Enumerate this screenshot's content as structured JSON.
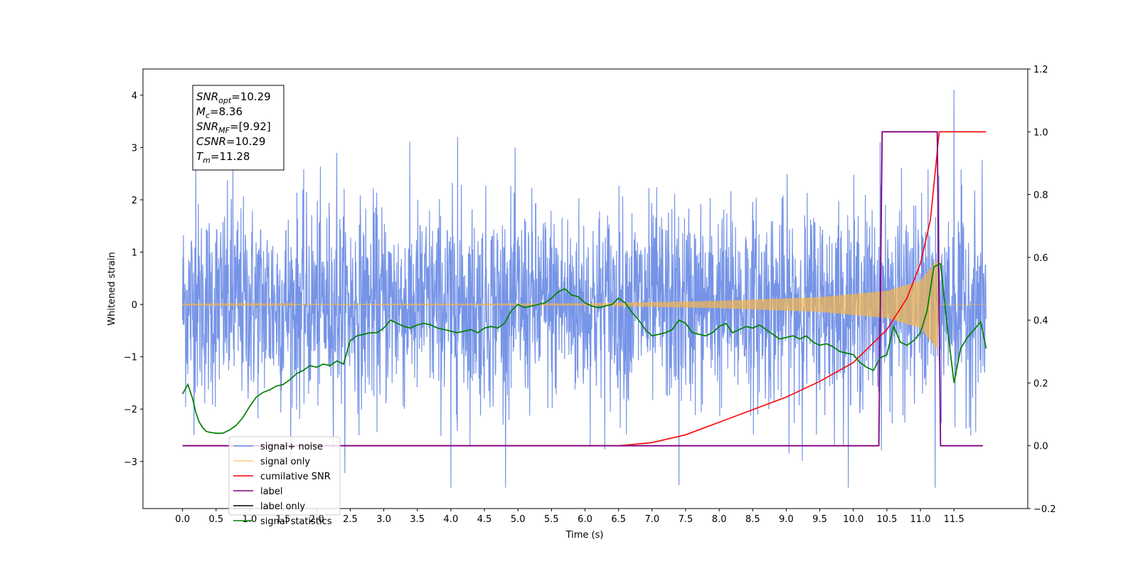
{
  "chart_data": {
    "type": "line",
    "xlabel": "Time (s)",
    "ylabel": "Whitened strain",
    "x_ticks": [
      "0.0",
      "0.5",
      "1.0",
      "1.5",
      "2.0",
      "2.5",
      "3.0",
      "3.5",
      "4.0",
      "4.5",
      "5.0",
      "5.5",
      "6.0",
      "6.5",
      "7.0",
      "7.5",
      "8.0",
      "8.5",
      "9.0",
      "9.5",
      "10.0",
      "10.5",
      "11.0",
      "11.5"
    ],
    "xlim": [
      -0.59,
      12.6
    ],
    "ylim_left": [
      -3.9,
      4.5
    ],
    "left_ticks": [
      "−3",
      "−2",
      "−1",
      "0",
      "1",
      "2",
      "3",
      "4"
    ],
    "ylim_right": [
      -0.2,
      1.2
    ],
    "right_ticks": [
      "−0.2",
      "0.0",
      "0.2",
      "0.4",
      "0.6",
      "0.8",
      "1.0",
      "1.2"
    ],
    "grid": false,
    "legend_position": "lower-left",
    "annotation": {
      "lines": [
        {
          "main": "SNR",
          "sub": "opt",
          "value": "=10.29"
        },
        {
          "main": "M",
          "sub": "c",
          "value": "=8.36"
        },
        {
          "main": "SNR",
          "sub": "MF",
          "value": "=[9.92]"
        },
        {
          "main": "CSNR",
          "sub": "",
          "value": "=10.29"
        },
        {
          "main": "T",
          "sub": "m",
          "value": "=11.28"
        }
      ]
    },
    "series": [
      {
        "name": "signal+ noise",
        "color": "#6f8ee6",
        "axis": "left",
        "x_range": [
          0.0,
          11.98
        ],
        "envelope_min": -3.5,
        "envelope_max": 4.1,
        "spikes": [
          {
            "x": 0.2,
            "y": 2.9
          },
          {
            "x": 0.75,
            "y": 2.8
          },
          {
            "x": 2.3,
            "y": 2.9
          },
          {
            "x": 4.0,
            "y": -3.5
          },
          {
            "x": 4.1,
            "y": 3.2
          },
          {
            "x": 7.4,
            "y": -3.45
          },
          {
            "x": 10.4,
            "y": 3.1
          },
          {
            "x": 11.22,
            "y": -3.5
          },
          {
            "x": 11.5,
            "y": 4.1
          }
        ]
      },
      {
        "name": "signal only",
        "color": "#f5b64c",
        "axis": "left",
        "chirp_envelope": {
          "x": [
            0.0,
            6.0,
            8.0,
            9.5,
            10.5,
            11.0,
            11.25,
            11.28,
            11.98
          ],
          "amp": [
            0.005,
            0.02,
            0.07,
            0.14,
            0.26,
            0.45,
            0.85,
            0.0,
            0.0
          ]
        }
      },
      {
        "name": "cumilative SNR",
        "color": "#ff0000",
        "axis": "right",
        "x": [
          0.0,
          5.0,
          6.5,
          7.0,
          7.5,
          8.0,
          8.5,
          9.0,
          9.5,
          10.0,
          10.5,
          10.8,
          11.0,
          11.15,
          11.28,
          11.98
        ],
        "y": [
          0.0,
          0.0,
          0.0,
          0.01,
          0.035,
          0.075,
          0.115,
          0.155,
          0.205,
          0.265,
          0.37,
          0.47,
          0.58,
          0.72,
          1.0,
          1.0
        ]
      },
      {
        "name": "label",
        "color": "#800080",
        "axis": "right",
        "x": [
          0.0,
          10.38,
          10.43,
          11.25,
          11.3,
          11.93
        ],
        "y": [
          0.0,
          0.0,
          1.0,
          1.0,
          0.0,
          0.0
        ]
      },
      {
        "name": "label only",
        "color": "#000000",
        "axis": "right",
        "legend_only": true
      },
      {
        "name": "signal statistics",
        "color": "#008000",
        "axis": "right",
        "x": [
          0.0,
          0.08,
          0.15,
          0.2,
          0.25,
          0.3,
          0.35,
          0.4,
          0.5,
          0.6,
          0.65,
          0.7,
          0.8,
          0.9,
          1.0,
          1.1,
          1.2,
          1.3,
          1.4,
          1.5,
          1.6,
          1.7,
          1.8,
          1.9,
          2.0,
          2.1,
          2.2,
          2.3,
          2.4,
          2.5,
          2.6,
          2.7,
          2.8,
          2.9,
          3.0,
          3.1,
          3.2,
          3.3,
          3.4,
          3.5,
          3.6,
          3.7,
          3.8,
          3.9,
          4.0,
          4.1,
          4.2,
          4.3,
          4.4,
          4.5,
          4.6,
          4.7,
          4.8,
          4.9,
          5.0,
          5.1,
          5.2,
          5.3,
          5.4,
          5.5,
          5.6,
          5.7,
          5.8,
          5.9,
          6.0,
          6.1,
          6.2,
          6.3,
          6.4,
          6.5,
          6.6,
          6.7,
          6.8,
          6.9,
          7.0,
          7.1,
          7.2,
          7.3,
          7.4,
          7.5,
          7.6,
          7.7,
          7.8,
          7.9,
          8.0,
          8.1,
          8.2,
          8.3,
          8.4,
          8.5,
          8.6,
          8.7,
          8.8,
          8.9,
          9.0,
          9.1,
          9.2,
          9.3,
          9.4,
          9.5,
          9.6,
          9.7,
          9.8,
          9.9,
          10.0,
          10.1,
          10.2,
          10.3,
          10.4,
          10.5,
          10.6,
          10.7,
          10.8,
          10.9,
          11.0,
          11.1,
          11.2,
          11.3,
          11.4,
          11.5,
          11.6,
          11.7,
          11.8,
          11.9,
          11.98
        ],
        "y": [
          0.165,
          0.195,
          0.15,
          0.105,
          0.075,
          0.058,
          0.046,
          0.043,
          0.04,
          0.04,
          0.045,
          0.05,
          0.065,
          0.09,
          0.125,
          0.155,
          0.17,
          0.178,
          0.19,
          0.195,
          0.21,
          0.23,
          0.24,
          0.255,
          0.25,
          0.26,
          0.255,
          0.27,
          0.26,
          0.335,
          0.35,
          0.355,
          0.36,
          0.36,
          0.375,
          0.4,
          0.39,
          0.38,
          0.375,
          0.385,
          0.39,
          0.385,
          0.375,
          0.37,
          0.365,
          0.36,
          0.365,
          0.37,
          0.36,
          0.375,
          0.38,
          0.375,
          0.39,
          0.43,
          0.45,
          0.44,
          0.445,
          0.45,
          0.455,
          0.47,
          0.49,
          0.5,
          0.48,
          0.475,
          0.455,
          0.445,
          0.44,
          0.445,
          0.45,
          0.47,
          0.455,
          0.425,
          0.4,
          0.37,
          0.35,
          0.355,
          0.36,
          0.37,
          0.4,
          0.39,
          0.36,
          0.355,
          0.35,
          0.36,
          0.38,
          0.39,
          0.36,
          0.37,
          0.38,
          0.375,
          0.385,
          0.37,
          0.355,
          0.34,
          0.345,
          0.35,
          0.34,
          0.35,
          0.33,
          0.32,
          0.325,
          0.315,
          0.3,
          0.295,
          0.29,
          0.265,
          0.25,
          0.24,
          0.28,
          0.29,
          0.38,
          0.33,
          0.32,
          0.335,
          0.36,
          0.43,
          0.57,
          0.58,
          0.38,
          0.2,
          0.31,
          0.345,
          0.37,
          0.395,
          0.31
        ]
      }
    ]
  }
}
